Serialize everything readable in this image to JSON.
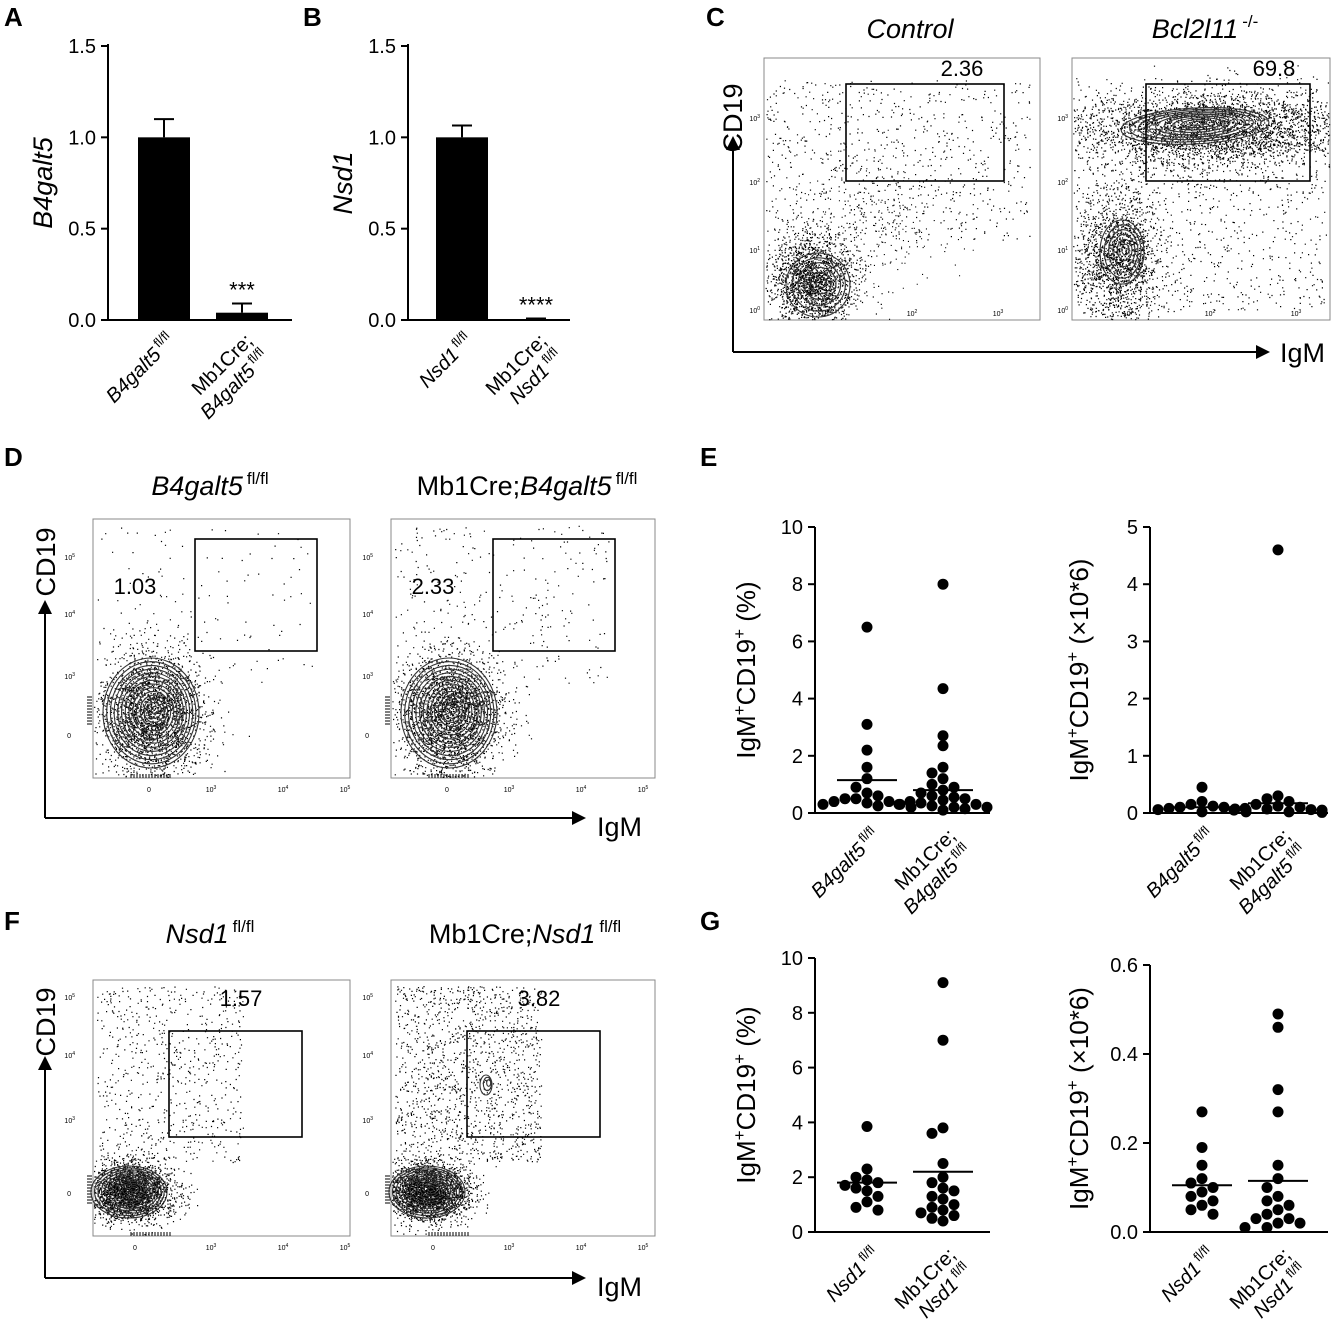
{
  "panels": {
    "A": "A",
    "B": "B",
    "C": "C",
    "D": "D",
    "E": "E",
    "F": "F",
    "G": "G"
  },
  "chart_data": [
    {
      "id": "A",
      "type": "bar",
      "ylabel": "B4galt5",
      "ylim": [
        0,
        1.5
      ],
      "yticks": [
        "0.0",
        "0.5",
        "1.0",
        "1.5"
      ],
      "categories": [
        {
          "lines": [
            [
              "B4galt5",
              "fl/fl"
            ]
          ]
        },
        {
          "lines": [
            [
              "Mb1Cre;",
              ""
            ],
            [
              "B4galt5",
              "fl/fl"
            ]
          ]
        }
      ],
      "values": [
        1.0,
        0.04
      ],
      "errors": [
        0.1,
        0.05
      ],
      "annotations": [
        "",
        "***"
      ]
    },
    {
      "id": "B",
      "type": "bar",
      "ylabel": "Nsd1",
      "ylim": [
        0,
        1.5
      ],
      "yticks": [
        "0.0",
        "0.5",
        "1.0",
        "1.5"
      ],
      "categories": [
        {
          "lines": [
            [
              "Nsd1",
              "fl/fl"
            ]
          ]
        },
        {
          "lines": [
            [
              "Mb1Cre;",
              ""
            ],
            [
              "Nsd1",
              "fl/fl"
            ]
          ]
        }
      ],
      "values": [
        1.0,
        0.005
      ],
      "errors": [
        0.065,
        0.003
      ],
      "annotations": [
        "",
        "****"
      ]
    },
    {
      "id": "C",
      "type": "scatter",
      "subtype": "flow-cytometry",
      "xlabel": "IgM",
      "ylabel": "CD19",
      "axis_scale": "log",
      "tick_labels": [
        "10",
        "10",
        "10",
        "10"
      ],
      "tick_exponents": [
        "0",
        "1",
        "2",
        "3"
      ],
      "plots": [
        {
          "title": "Control",
          "gate_percent": "2.36"
        },
        {
          "title": "Bcl2l11",
          "title_sup": "-/-",
          "gate_percent": "69.8"
        }
      ]
    },
    {
      "id": "D",
      "type": "scatter",
      "subtype": "flow-cytometry",
      "xlabel": "IgM",
      "ylabel": "CD19",
      "axis_scale": "biexponential",
      "tick_zero": "0",
      "tick_labels": [
        "10",
        "10",
        "10"
      ],
      "tick_exponents": [
        "3",
        "4",
        "5"
      ],
      "plots": [
        {
          "title_pre": "",
          "title": "B4galt5",
          "title_sup": "fl/fl",
          "gate_percent": "1.03"
        },
        {
          "title_pre": "Mb1Cre;",
          "title": "B4galt5",
          "title_sup": "fl/fl",
          "gate_percent": "2.33"
        }
      ]
    },
    {
      "id": "E",
      "type": "scatter",
      "subtype": "dot-plot-with-mean",
      "plots": [
        {
          "ylabel": "IgM+CD19+ (%)",
          "ylim": [
            0,
            10
          ],
          "yticks": [
            "0",
            "2",
            "4",
            "6",
            "8",
            "10"
          ],
          "categories": [
            {
              "lines": [
                [
                  "B4galt5",
                  "fl/fl"
                ]
              ]
            },
            {
              "lines": [
                [
                  "Mb1Cre;",
                  ""
                ],
                [
                  "B4galt5",
                  "fl/fl"
                ]
              ]
            }
          ],
          "means": [
            1.15,
            0.8
          ],
          "groups": [
            [
              6.5,
              3.1,
              2.2,
              1.6,
              1.2,
              0.9,
              0.7,
              0.6,
              0.5,
              0.5,
              0.4,
              0.4,
              0.35,
              0.3,
              0.3,
              0.25,
              0.2
            ],
            [
              8.0,
              4.35,
              2.7,
              2.35,
              1.6,
              1.4,
              1.2,
              1.0,
              0.9,
              0.8,
              0.7,
              0.6,
              0.55,
              0.5,
              0.45,
              0.4,
              0.35,
              0.3,
              0.3,
              0.25,
              0.2,
              0.2,
              0.15,
              0.1
            ]
          ]
        },
        {
          "ylabel": "IgM+CD19+ (×10*6)",
          "ylim": [
            0,
            5
          ],
          "yticks": [
            "0",
            "1",
            "2",
            "3",
            "4",
            "5"
          ],
          "categories": [
            {
              "lines": [
                [
                  "B4galt5",
                  "fl/fl"
                ]
              ]
            },
            {
              "lines": [
                [
                  "Mb1Cre;",
                  ""
                ],
                [
                  "B4galt5",
                  "fl/fl"
                ]
              ]
            }
          ],
          "means": [
            0.1,
            0.17
          ],
          "groups": [
            [
              0.45,
              0.2,
              0.15,
              0.12,
              0.1,
              0.1,
              0.08,
              0.07,
              0.06,
              0.05,
              0.05,
              0.04,
              0.03,
              0.03,
              0.02,
              0.02
            ],
            [
              4.6,
              0.3,
              0.25,
              0.2,
              0.15,
              0.12,
              0.1,
              0.08,
              0.07,
              0.06,
              0.05,
              0.05,
              0.04,
              0.03,
              0.02,
              0.02,
              0.01
            ]
          ]
        }
      ]
    },
    {
      "id": "F",
      "type": "scatter",
      "subtype": "flow-cytometry",
      "xlabel": "IgM",
      "ylabel": "CD19",
      "axis_scale": "biexponential",
      "tick_zero": "0",
      "tick_labels": [
        "10",
        "10",
        "10"
      ],
      "tick_exponents": [
        "3",
        "4",
        "5"
      ],
      "plots": [
        {
          "title_pre": "",
          "title": "Nsd1",
          "title_sup": "fl/fl",
          "gate_percent": "1.57"
        },
        {
          "title_pre": "Mb1Cre;",
          "title": "Nsd1",
          "title_sup": "fl/fl",
          "gate_percent": "3.82"
        }
      ]
    },
    {
      "id": "G",
      "type": "scatter",
      "subtype": "dot-plot-with-mean",
      "plots": [
        {
          "ylabel": "IgM+CD19+ (%)",
          "ylim": [
            0,
            10
          ],
          "yticks": [
            "0",
            "2",
            "4",
            "6",
            "8",
            "10"
          ],
          "categories": [
            {
              "lines": [
                [
                  "Nsd1",
                  "fl/fl"
                ]
              ]
            },
            {
              "lines": [
                [
                  "Mb1Cre;",
                  ""
                ],
                [
                  "Nsd1",
                  "fl/fl"
                ]
              ]
            }
          ],
          "means": [
            1.8,
            2.2
          ],
          "groups": [
            [
              3.85,
              2.3,
              2.0,
              1.9,
              1.8,
              1.7,
              1.6,
              1.5,
              1.3,
              1.1,
              0.9,
              0.8
            ],
            [
              9.1,
              7.0,
              3.8,
              3.6,
              2.5,
              2.0,
              1.8,
              1.6,
              1.5,
              1.3,
              1.2,
              1.0,
              0.9,
              0.8,
              0.7,
              0.6,
              0.5,
              0.4
            ]
          ]
        },
        {
          "ylabel": "IgM+CD19+ (×10*6)",
          "ylim": [
            0,
            0.6
          ],
          "yticks": [
            "0.0",
            "0.2",
            "0.4",
            "0.6"
          ],
          "categories": [
            {
              "lines": [
                [
                  "Nsd1",
                  "fl/fl"
                ]
              ]
            },
            {
              "lines": [
                [
                  "Mb1Cre;",
                  ""
                ],
                [
                  "Nsd1",
                  "fl/fl"
                ]
              ]
            }
          ],
          "means": [
            0.105,
            0.115
          ],
          "groups": [
            [
              0.27,
              0.19,
              0.15,
              0.12,
              0.11,
              0.1,
              0.09,
              0.08,
              0.07,
              0.06,
              0.05,
              0.04
            ],
            [
              0.49,
              0.46,
              0.32,
              0.27,
              0.15,
              0.12,
              0.1,
              0.08,
              0.07,
              0.06,
              0.05,
              0.04,
              0.03,
              0.03,
              0.02,
              0.02,
              0.01,
              0.01
            ]
          ]
        }
      ]
    }
  ]
}
